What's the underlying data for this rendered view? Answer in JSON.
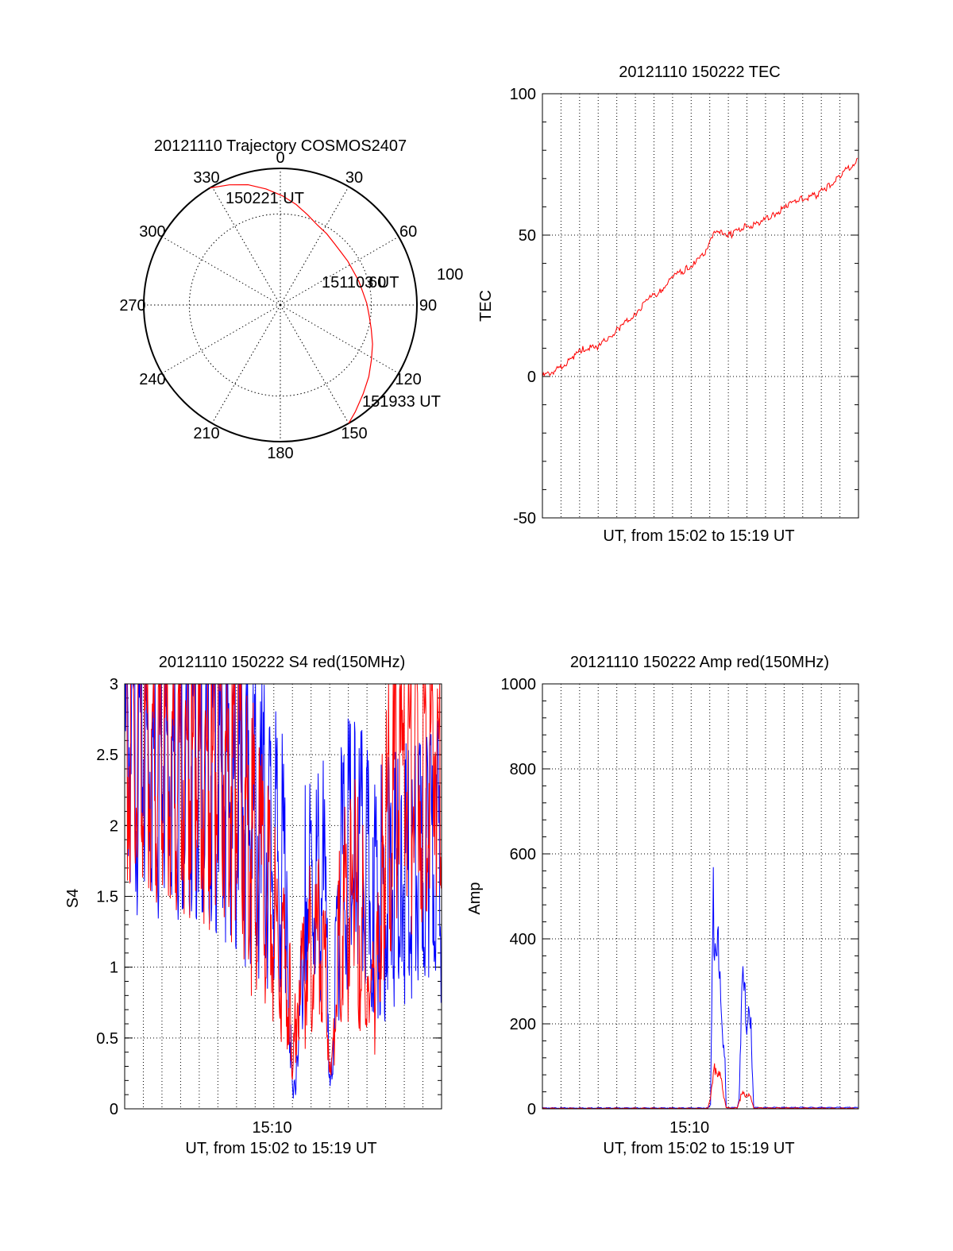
{
  "chart_data": [
    {
      "type": "polar",
      "title": "20121110 Trajectory COSMOS2407",
      "angle_labels": [
        "0",
        "30",
        "60",
        "90",
        "120",
        "150",
        "180",
        "210",
        "240",
        "270",
        "300",
        "330"
      ],
      "radial_ring_label": "60",
      "horizon_label": "100",
      "trajectory_start_label": "150221 UT",
      "trajectory_middle_label": "151103 UT",
      "trajectory_end_label": "151933 UT",
      "trajectory": {
        "azimuth_deg": [
          329,
          337,
          345,
          353,
          1,
          9,
          17,
          25,
          33,
          41,
          49,
          57,
          65,
          73,
          81,
          89,
          97,
          105,
          113,
          121,
          129,
          137,
          145,
          150
        ],
        "zenith_deg": [
          90,
          86,
          82,
          77,
          72,
          67,
          62,
          58,
          56,
          54,
          53,
          53,
          53,
          54,
          55,
          57,
          59,
          62,
          66,
          70,
          75,
          80,
          86,
          90
        ]
      },
      "trajectory_color": "#ff0000"
    },
    {
      "type": "line",
      "title": "20121110 150222 TEC",
      "xlabel": "UT, from 15:02 to 15:19 UT",
      "ylabel": "TEC",
      "ylim": [
        -50,
        100
      ],
      "yticks": [
        "-50",
        "0",
        "50",
        "100"
      ],
      "xlim_min": [
        0,
        17.2
      ],
      "grid": true,
      "series": [
        {
          "color": "#ff0000",
          "x_min": [
            0.0,
            1.0,
            1.7,
            2.2,
            3.0,
            3.6,
            4.2,
            5.0,
            5.7,
            6.4,
            7.1,
            7.8,
            8.3,
            8.9,
            9.2,
            9.7,
            10.3,
            11.0,
            11.8,
            12.5,
            13.3,
            14.0,
            14.9,
            15.5,
            16.2,
            17.2
          ],
          "values": [
            0.0,
            3.0,
            7.0,
            10.0,
            10.0,
            14.0,
            17.0,
            22.0,
            27.0,
            30.0,
            35.0,
            38.0,
            40.0,
            44.0,
            50.0,
            51.0,
            50.0,
            53.0,
            54.0,
            57.0,
            60.0,
            63.0,
            64.0,
            67.0,
            71.0,
            77.0
          ]
        }
      ]
    },
    {
      "type": "line",
      "title": "20121110 150222 S4 red(150MHz)",
      "xlabel": "UT, from 15:02 to 15:19 UT",
      "ylabel": "S4",
      "ylim": [
        0,
        3
      ],
      "yticks": [
        "0",
        "0.5",
        "1",
        "1.5",
        "2",
        "2.5",
        "3"
      ],
      "xtick_labels": [
        "15:10"
      ],
      "xlim_min": [
        0,
        17.2
      ],
      "grid": true,
      "series": [
        {
          "color": "#0000ff",
          "x_min": [
            0.0,
            2.0,
            4.0,
            6.0,
            7.4,
            8.8,
            9.0,
            9.1,
            9.4,
            9.8,
            10.8,
            11.2,
            11.7,
            12.5,
            13.5,
            15.0,
            16.5,
            17.2
          ],
          "values": [
            2.6,
            2.5,
            2.5,
            2.3,
            2.0,
            1.6,
            0.5,
            0.15,
            0.3,
            1.5,
            1.6,
            0.16,
            1.7,
            1.8,
            1.5,
            1.6,
            1.7,
            1.8
          ]
        },
        {
          "color": "#ff0000",
          "x_min": [
            0.0,
            2.0,
            4.0,
            6.0,
            7.4,
            8.0,
            8.6,
            9.0,
            9.1,
            9.4,
            10.4,
            11.0,
            11.2,
            11.7,
            12.5,
            13.2,
            13.6,
            14.0,
            15.0,
            16.0,
            17.2
          ],
          "values": [
            2.7,
            2.6,
            2.5,
            2.3,
            1.6,
            1.4,
            1.0,
            0.8,
            0.15,
            0.9,
            1.2,
            0.9,
            0.15,
            1.3,
            1.5,
            1.1,
            0.6,
            2.0,
            2.3,
            2.5,
            2.6
          ]
        }
      ]
    },
    {
      "type": "line",
      "title": "20121110 150222 Amp red(150MHz)",
      "xlabel": "UT, from 15:02 to 15:19 UT",
      "ylabel": "Amp",
      "ylim": [
        0,
        1000
      ],
      "yticks": [
        "0",
        "200",
        "400",
        "600",
        "800",
        "1000"
      ],
      "xtick_labels": [
        "15:10"
      ],
      "xlim_min": [
        0,
        17.2
      ],
      "grid": true,
      "series": [
        {
          "color": "#0000ff",
          "x_min": [
            0.0,
            9.0,
            9.15,
            9.3,
            9.5,
            9.7,
            9.9,
            10.0,
            10.6,
            10.7,
            10.85,
            11.0,
            11.15,
            11.35,
            11.5,
            17.2
          ],
          "values": [
            2,
            2,
            10,
            490,
            400,
            250,
            150,
            3,
            3,
            20,
            290,
            250,
            210,
            180,
            3,
            3
          ]
        },
        {
          "color": "#ff0000",
          "x_min": [
            0.0,
            9.0,
            9.2,
            9.4,
            9.6,
            9.8,
            10.0,
            10.6,
            10.8,
            11.0,
            11.3,
            11.5,
            17.2
          ],
          "values": [
            1,
            1,
            40,
            100,
            80,
            50,
            2,
            2,
            30,
            35,
            30,
            2,
            1
          ]
        }
      ]
    }
  ]
}
